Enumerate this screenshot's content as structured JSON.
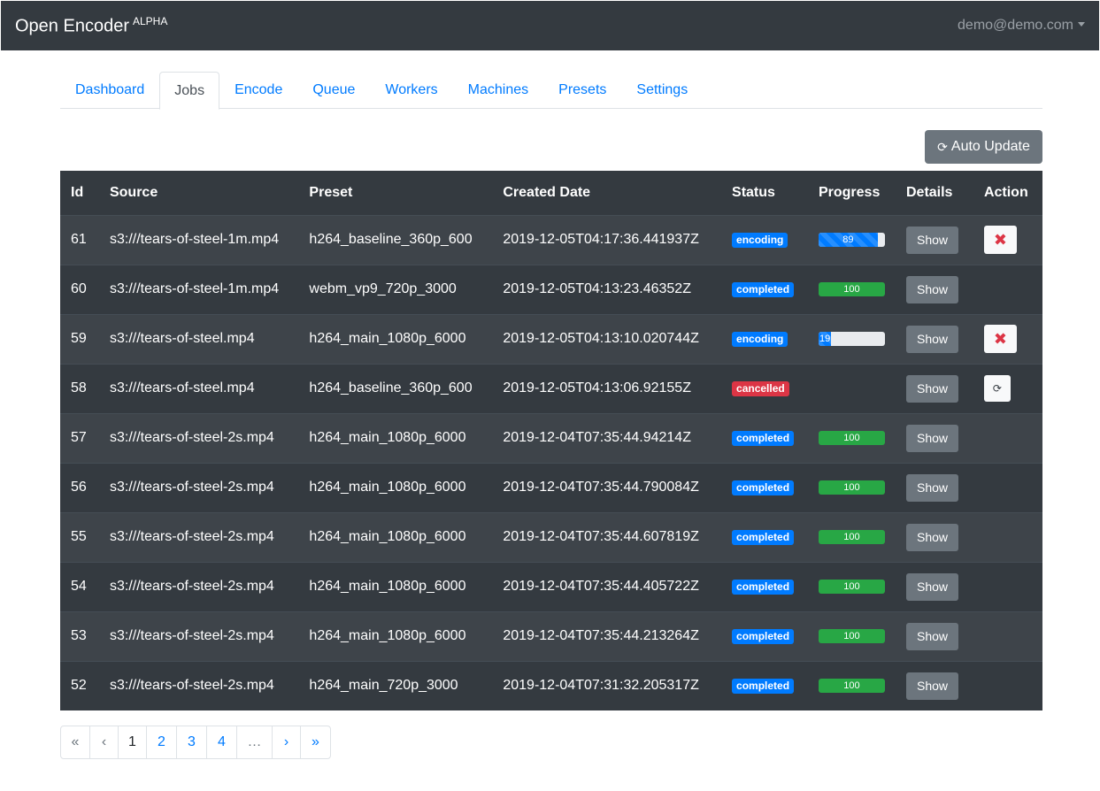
{
  "navbar": {
    "brand": "Open Encoder",
    "brand_sup": "ALPHA",
    "user": "demo@demo.com"
  },
  "tabs": [
    "Dashboard",
    "Jobs",
    "Encode",
    "Queue",
    "Workers",
    "Machines",
    "Presets",
    "Settings"
  ],
  "active_tab": "Jobs",
  "toolbar": {
    "auto_update_icon": "⟳",
    "auto_update_label": "Auto Update"
  },
  "table": {
    "headers": [
      "Id",
      "Source",
      "Preset",
      "Created Date",
      "Status",
      "Progress",
      "Details",
      "Action"
    ],
    "show_label": "Show",
    "rows": [
      {
        "id": "61",
        "source": "s3:///tears-of-steel-1m.mp4",
        "preset": "h264_baseline_360p_600",
        "created": "2019-12-05T04:17:36.441937Z",
        "status": "encoding",
        "progress": 89,
        "progress_label": "89",
        "action": "cancel"
      },
      {
        "id": "60",
        "source": "s3:///tears-of-steel-1m.mp4",
        "preset": "webm_vp9_720p_3000",
        "created": "2019-12-05T04:13:23.46352Z",
        "status": "completed",
        "progress": 100,
        "progress_label": "100",
        "action": ""
      },
      {
        "id": "59",
        "source": "s3:///tears-of-steel.mp4",
        "preset": "h264_main_1080p_6000",
        "created": "2019-12-05T04:13:10.020744Z",
        "status": "encoding",
        "progress": 19,
        "progress_label": "19",
        "action": "cancel"
      },
      {
        "id": "58",
        "source": "s3:///tears-of-steel.mp4",
        "preset": "h264_baseline_360p_600",
        "created": "2019-12-05T04:13:06.92155Z",
        "status": "cancelled",
        "progress": null,
        "progress_label": "",
        "action": "restart"
      },
      {
        "id": "57",
        "source": "s3:///tears-of-steel-2s.mp4",
        "preset": "h264_main_1080p_6000",
        "created": "2019-12-04T07:35:44.94214Z",
        "status": "completed",
        "progress": 100,
        "progress_label": "100",
        "action": ""
      },
      {
        "id": "56",
        "source": "s3:///tears-of-steel-2s.mp4",
        "preset": "h264_main_1080p_6000",
        "created": "2019-12-04T07:35:44.790084Z",
        "status": "completed",
        "progress": 100,
        "progress_label": "100",
        "action": ""
      },
      {
        "id": "55",
        "source": "s3:///tears-of-steel-2s.mp4",
        "preset": "h264_main_1080p_6000",
        "created": "2019-12-04T07:35:44.607819Z",
        "status": "completed",
        "progress": 100,
        "progress_label": "100",
        "action": ""
      },
      {
        "id": "54",
        "source": "s3:///tears-of-steel-2s.mp4",
        "preset": "h264_main_1080p_6000",
        "created": "2019-12-04T07:35:44.405722Z",
        "status": "completed",
        "progress": 100,
        "progress_label": "100",
        "action": ""
      },
      {
        "id": "53",
        "source": "s3:///tears-of-steel-2s.mp4",
        "preset": "h264_main_1080p_6000",
        "created": "2019-12-04T07:35:44.213264Z",
        "status": "completed",
        "progress": 100,
        "progress_label": "100",
        "action": ""
      },
      {
        "id": "52",
        "source": "s3:///tears-of-steel-2s.mp4",
        "preset": "h264_main_720p_3000",
        "created": "2019-12-04T07:31:32.205317Z",
        "status": "completed",
        "progress": 100,
        "progress_label": "100",
        "action": ""
      }
    ]
  },
  "pagination": {
    "items": [
      "«",
      "‹",
      "1",
      "2",
      "3",
      "4",
      "…",
      "›",
      "»"
    ],
    "current": "1"
  },
  "colors": {
    "navbar": "#343a40",
    "link": "#007bff",
    "badge_blue": "#007bff",
    "badge_red": "#dc3545",
    "progress_green": "#28a745",
    "secondary": "#6c757d"
  },
  "icons": {
    "cancel": "close-icon",
    "restart": "refresh-icon",
    "auto_update": "refresh-icon",
    "user_menu": "caret-down-icon"
  }
}
